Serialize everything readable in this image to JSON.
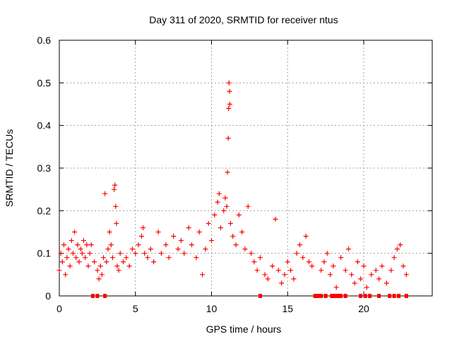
{
  "chart_data": {
    "type": "scatter",
    "title": "Day 311 of 2020, SRMTID for receiver ntus",
    "xlabel": "GPS time / hours",
    "ylabel": "SRMTID / TECUs",
    "xlim": [
      0,
      24.5
    ],
    "ylim": [
      0,
      0.6
    ],
    "x_ticks": [
      "0",
      "5",
      "10",
      "15",
      "20"
    ],
    "x_tick_values": [
      0,
      5,
      10,
      15,
      20
    ],
    "y_ticks": [
      "0",
      "0.1",
      "0.2",
      "0.3",
      "0.4",
      "0.5",
      "0.6"
    ],
    "y_tick_values": [
      0,
      0.1,
      0.2,
      0.3,
      0.4,
      0.5,
      0.6
    ],
    "grid": true,
    "marker": "plus",
    "marker_color": "#ff0000",
    "zero_marker": "square",
    "series": [
      {
        "name": "SRMTID",
        "points": [
          [
            0.0,
            0.06
          ],
          [
            0.1,
            0.1
          ],
          [
            0.2,
            0.08
          ],
          [
            0.3,
            0.12
          ],
          [
            0.4,
            0.05
          ],
          [
            0.5,
            0.09
          ],
          [
            0.6,
            0.11
          ],
          [
            0.7,
            0.07
          ],
          [
            0.8,
            0.13
          ],
          [
            0.9,
            0.1
          ],
          [
            1.0,
            0.15
          ],
          [
            1.1,
            0.09
          ],
          [
            1.2,
            0.12
          ],
          [
            1.3,
            0.08
          ],
          [
            1.4,
            0.11
          ],
          [
            1.5,
            0.1
          ],
          [
            1.6,
            0.13
          ],
          [
            1.7,
            0.09
          ],
          [
            1.8,
            0.12
          ],
          [
            1.9,
            0.07
          ],
          [
            2.0,
            0.1
          ],
          [
            2.1,
            0.12
          ],
          [
            2.3,
            0.08
          ],
          [
            2.5,
            0.06
          ],
          [
            2.6,
            0.04
          ],
          [
            2.7,
            0.07
          ],
          [
            2.8,
            0.05
          ],
          [
            2.9,
            0.09
          ],
          [
            3.0,
            0.24
          ],
          [
            3.1,
            0.08
          ],
          [
            3.2,
            0.11
          ],
          [
            3.3,
            0.15
          ],
          [
            3.4,
            0.12
          ],
          [
            3.5,
            0.09
          ],
          [
            3.6,
            0.25
          ],
          [
            3.65,
            0.26
          ],
          [
            3.7,
            0.21
          ],
          [
            3.75,
            0.17
          ],
          [
            3.8,
            0.07
          ],
          [
            3.9,
            0.06
          ],
          [
            4.0,
            0.1
          ],
          [
            4.2,
            0.08
          ],
          [
            4.4,
            0.09
          ],
          [
            4.6,
            0.07
          ],
          [
            4.8,
            0.11
          ],
          [
            5.0,
            0.1
          ],
          [
            5.2,
            0.12
          ],
          [
            5.4,
            0.14
          ],
          [
            5.5,
            0.16
          ],
          [
            5.6,
            0.1
          ],
          [
            5.8,
            0.09
          ],
          [
            6.0,
            0.11
          ],
          [
            6.2,
            0.08
          ],
          [
            6.5,
            0.15
          ],
          [
            6.7,
            0.1
          ],
          [
            7.0,
            0.12
          ],
          [
            7.2,
            0.09
          ],
          [
            7.5,
            0.14
          ],
          [
            7.8,
            0.11
          ],
          [
            8.0,
            0.13
          ],
          [
            8.2,
            0.1
          ],
          [
            8.5,
            0.16
          ],
          [
            8.7,
            0.12
          ],
          [
            9.0,
            0.09
          ],
          [
            9.2,
            0.15
          ],
          [
            9.4,
            0.05
          ],
          [
            9.6,
            0.11
          ],
          [
            9.8,
            0.17
          ],
          [
            10.0,
            0.13
          ],
          [
            10.2,
            0.19
          ],
          [
            10.4,
            0.22
          ],
          [
            10.5,
            0.24
          ],
          [
            10.6,
            0.16
          ],
          [
            10.8,
            0.2
          ],
          [
            10.9,
            0.23
          ],
          [
            11.0,
            0.21
          ],
          [
            11.05,
            0.29
          ],
          [
            11.1,
            0.37
          ],
          [
            11.12,
            0.44
          ],
          [
            11.15,
            0.5
          ],
          [
            11.18,
            0.48
          ],
          [
            11.2,
            0.45
          ],
          [
            11.25,
            0.17
          ],
          [
            11.4,
            0.14
          ],
          [
            11.6,
            0.12
          ],
          [
            11.8,
            0.19
          ],
          [
            12.0,
            0.15
          ],
          [
            12.2,
            0.11
          ],
          [
            12.4,
            0.21
          ],
          [
            12.6,
            0.1
          ],
          [
            12.8,
            0.08
          ],
          [
            13.0,
            0.06
          ],
          [
            13.2,
            0.09
          ],
          [
            13.5,
            0.05
          ],
          [
            13.7,
            0.04
          ],
          [
            14.0,
            0.07
          ],
          [
            14.2,
            0.18
          ],
          [
            14.4,
            0.06
          ],
          [
            14.6,
            0.03
          ],
          [
            14.8,
            0.05
          ],
          [
            15.0,
            0.08
          ],
          [
            15.2,
            0.06
          ],
          [
            15.4,
            0.04
          ],
          [
            15.6,
            0.1
          ],
          [
            15.8,
            0.12
          ],
          [
            16.0,
            0.09
          ],
          [
            16.2,
            0.14
          ],
          [
            16.4,
            0.08
          ],
          [
            16.6,
            0.07
          ],
          [
            17.2,
            0.06
          ],
          [
            17.4,
            0.08
          ],
          [
            17.6,
            0.1
          ],
          [
            17.8,
            0.05
          ],
          [
            18.0,
            0.07
          ],
          [
            18.2,
            0.02
          ],
          [
            18.5,
            0.09
          ],
          [
            18.8,
            0.06
          ],
          [
            19.0,
            0.11
          ],
          [
            19.2,
            0.05
          ],
          [
            19.4,
            0.03
          ],
          [
            19.6,
            0.08
          ],
          [
            19.8,
            0.04
          ],
          [
            20.0,
            0.07
          ],
          [
            20.2,
            0.02
          ],
          [
            20.5,
            0.05
          ],
          [
            20.8,
            0.06
          ],
          [
            21.0,
            0.04
          ],
          [
            21.2,
            0.07
          ],
          [
            21.5,
            0.03
          ],
          [
            21.8,
            0.06
          ],
          [
            22.0,
            0.09
          ],
          [
            22.2,
            0.11
          ],
          [
            22.4,
            0.12
          ],
          [
            22.6,
            0.07
          ],
          [
            22.8,
            0.05
          ]
        ],
        "zero_points": [
          2.2,
          2.5,
          3.0,
          13.2,
          16.8,
          17.0,
          17.2,
          17.5,
          17.9,
          18.1,
          18.3,
          18.5,
          18.8,
          19.8,
          20.1,
          20.4,
          21.0,
          21.7,
          22.0,
          22.3,
          22.8
        ]
      }
    ]
  }
}
